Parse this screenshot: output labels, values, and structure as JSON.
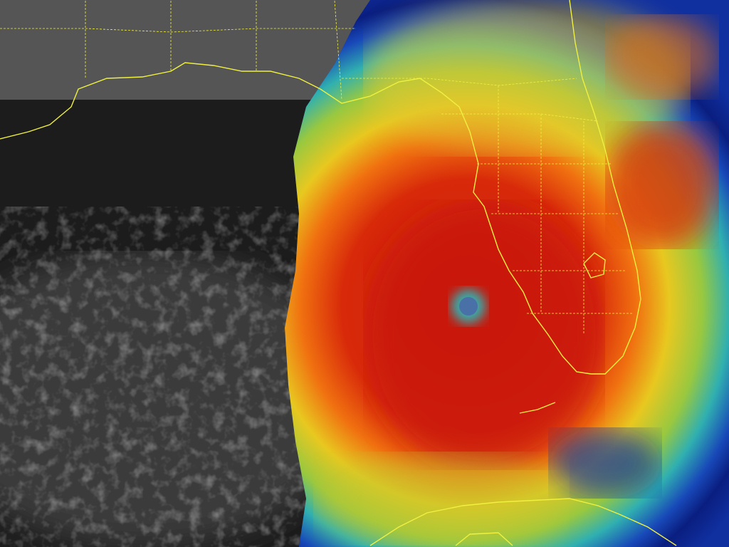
{
  "image": {
    "kind": "satellite-infrared-enhanced",
    "colors": {
      "background_clouds": "#2a2a2a",
      "clear_sky": "#1c1c1c",
      "core": "#d81e08",
      "inner": "#f06a10",
      "mid": "#e8d020",
      "outer": "#58c060",
      "edge": "#28a8c8",
      "fringe": "#1030a0",
      "eye": "#4a70a8",
      "borders": "#f0f040"
    }
  }
}
